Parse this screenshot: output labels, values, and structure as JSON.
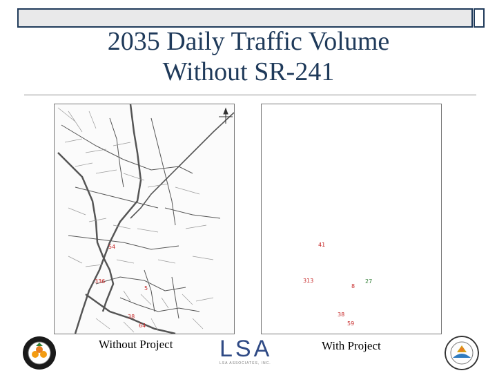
{
  "slide": {
    "title_line1": "2035 Daily Traffic Volume",
    "title_line2": "Without SR-241",
    "caption_left": "Without Project",
    "caption_right": "With Project"
  },
  "map_left": {
    "volumes": [
      {
        "id": "v54",
        "label": "54"
      },
      {
        "id": "v336",
        "label": "336"
      },
      {
        "id": "v5",
        "label": "5"
      },
      {
        "id": "v38",
        "label": "38"
      },
      {
        "id": "v64",
        "label": "64"
      }
    ]
  },
  "map_right": {
    "volumes": [
      {
        "id": "v41",
        "label": "41",
        "color": "#c62828"
      },
      {
        "id": "v313",
        "label": "313",
        "color": "#c62828"
      },
      {
        "id": "v8",
        "label": "8",
        "color": "#c62828"
      },
      {
        "id": "v27",
        "label": "27",
        "color": "#2e7d32"
      },
      {
        "id": "v38",
        "label": "38",
        "color": "#c62828"
      },
      {
        "id": "v59",
        "label": "59",
        "color": "#c62828"
      }
    ]
  },
  "logos": {
    "lsa_text": "LSA",
    "lsa_subtext": "LSA ASSOCIATES, INC.",
    "left_seal": "COUNTY OF ORANGE CALIFORNIA",
    "right_seal": "CITY OF SAN CLEMENTE CALIFORNIA"
  },
  "colors": {
    "title": "#1f3a5a",
    "volume_red": "#c62828",
    "volume_green": "#2e7d32",
    "lsa_blue": "#2f4a85"
  }
}
